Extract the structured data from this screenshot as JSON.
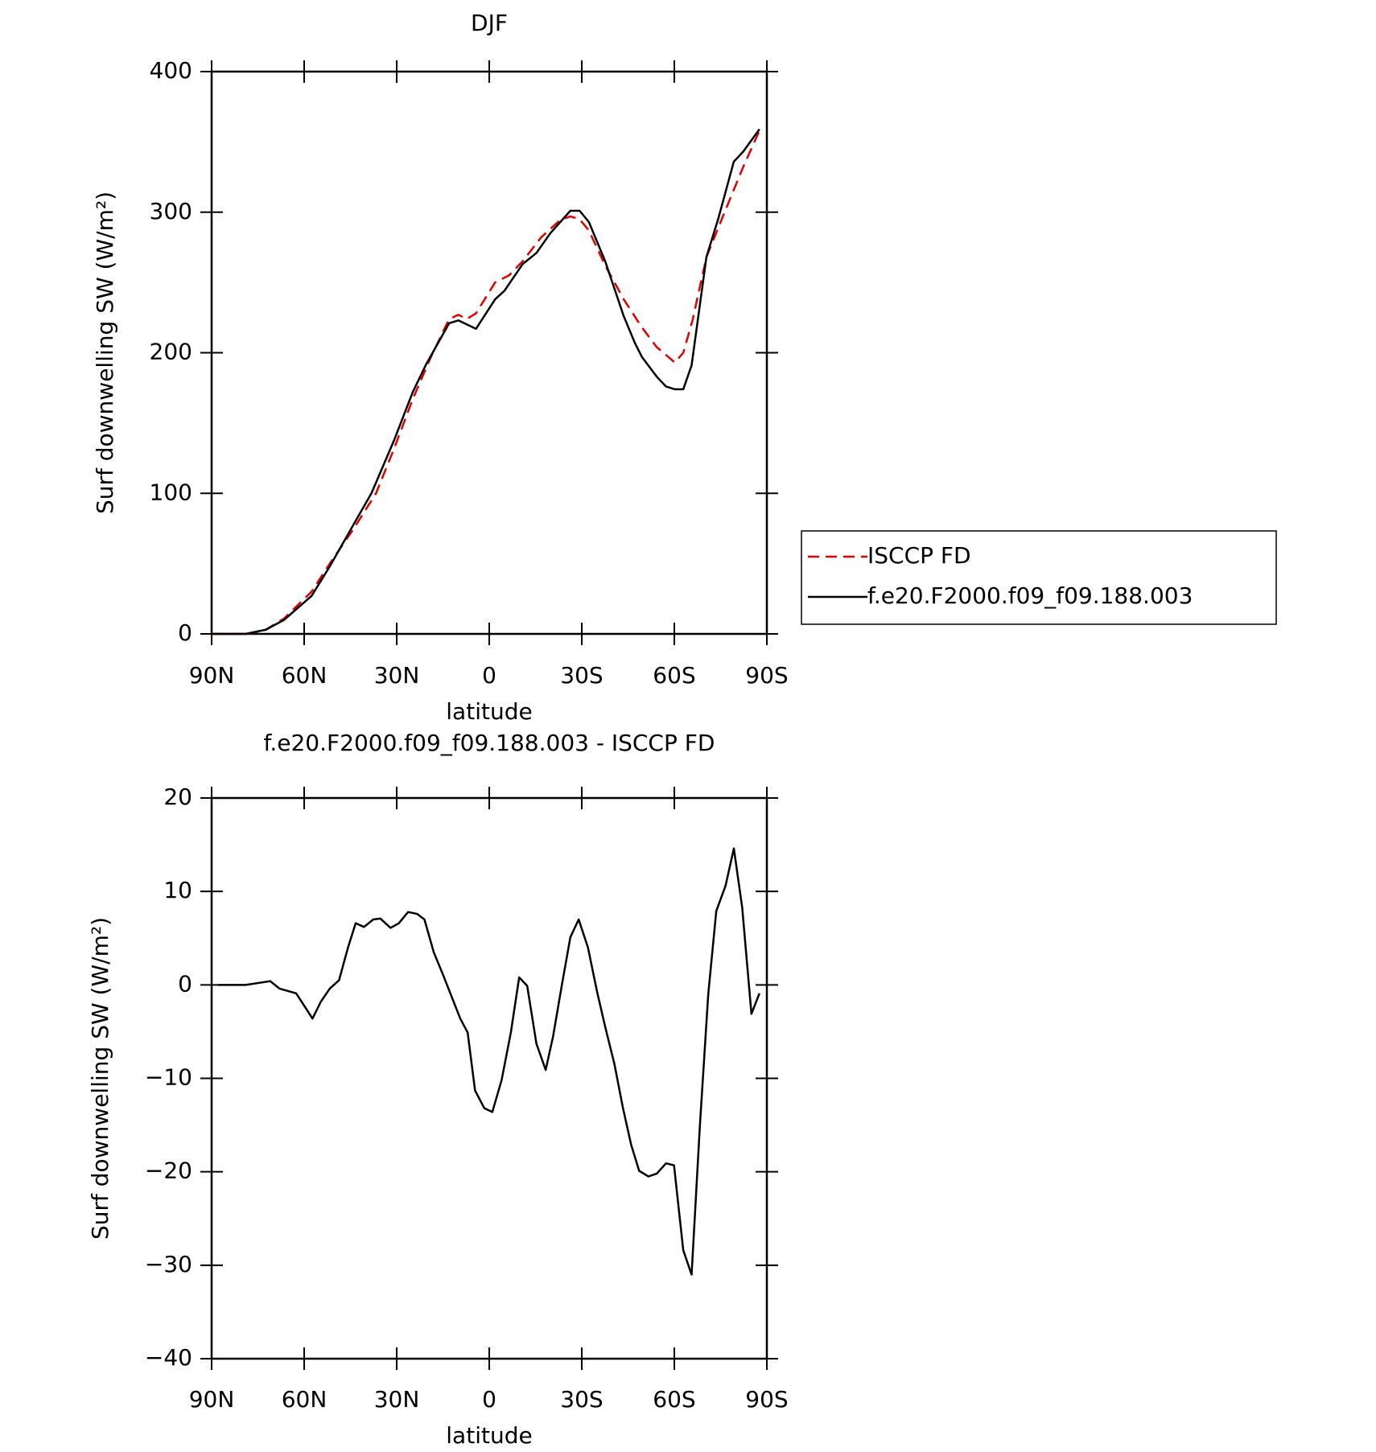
{
  "chart_data": [
    {
      "type": "line",
      "title": "DJF",
      "xlabel": "latitude",
      "ylabel": "Surf downwelling SW (W/m²)",
      "xlim": [
        90,
        -90
      ],
      "xticks": [
        {
          "value": 90,
          "label": "90N"
        },
        {
          "value": 60,
          "label": "60N"
        },
        {
          "value": 30,
          "label": "30N"
        },
        0,
        {
          "value": -30,
          "label": "30S"
        },
        {
          "value": -60,
          "label": "60S"
        },
        {
          "value": -90,
          "label": "90S"
        }
      ],
      "ylim": [
        0,
        400
      ],
      "yticks": [
        0,
        100,
        200,
        300,
        400
      ],
      "legend": "right",
      "series": [
        {
          "name": "ISCCP FD",
          "color": "#e00000",
          "dash": true,
          "x": [
            90,
            78.4,
            72.4,
            66.5,
            57.6,
            51.7,
            44.2,
            36.7,
            30.8,
            24.8,
            18.9,
            13,
            10,
            7.3,
            4.3,
            -1.9,
            -6.4,
            -10.8,
            -16.8,
            -22.8,
            -26.3,
            -29.3,
            -32.3,
            -37.6,
            -43.6,
            -49.5,
            -54.3,
            -60.2,
            -62.9,
            -65.9,
            -70.4,
            -76.3,
            -82.3,
            -87.6
          ],
          "values": [
            0,
            0,
            3,
            11,
            30,
            50,
            74,
            100,
            132,
            167,
            197,
            224,
            227,
            224,
            228,
            250,
            255,
            265,
            282,
            294,
            297,
            295,
            287,
            262,
            238,
            218,
            204,
            193,
            200,
            223,
            268,
            300,
            332,
            358
          ]
        },
        {
          "name": "f.e20.F2000.f09_f09.188.003",
          "color": "#000000",
          "dash": false,
          "x": [
            90,
            79,
            72.4,
            66.5,
            57.6,
            51.7,
            44.2,
            38.2,
            30.8,
            24.8,
            20.4,
            13,
            10,
            4.3,
            -1.9,
            -4.9,
            -10.8,
            -15.3,
            -19.8,
            -26.3,
            -29.3,
            -32.3,
            -37.6,
            -43.6,
            -47.2,
            -49.5,
            -54.3,
            -57.3,
            -60.2,
            -62.9,
            -65.6,
            -70.4,
            -74.2,
            -79.3,
            -82.3,
            -87.6
          ],
          "values": [
            0,
            0,
            3,
            10,
            27,
            48,
            77,
            100,
            138,
            172,
            192,
            221,
            223,
            217,
            238,
            244,
            263,
            271,
            285,
            301,
            301,
            293,
            265,
            226,
            207,
            197,
            183,
            176,
            174,
            174,
            191,
            268,
            295,
            336,
            343,
            359
          ]
        }
      ]
    },
    {
      "type": "line",
      "title": "f.e20.F2000.f09_f09.188.003 - ISCCP FD",
      "xlabel": "latitude",
      "ylabel": "Surf downwelling SW (W/m²)",
      "xlim": [
        90,
        -90
      ],
      "xticks": [
        {
          "value": 90,
          "label": "90N"
        },
        {
          "value": 60,
          "label": "60N"
        },
        {
          "value": 30,
          "label": "30N"
        },
        0,
        {
          "value": -30,
          "label": "30S"
        },
        {
          "value": -60,
          "label": "60S"
        },
        {
          "value": -90,
          "label": "90S"
        }
      ],
      "ylim": [
        -40,
        20
      ],
      "yticks": [
        {
          "value": -40,
          "label": "−40"
        },
        {
          "value": -30,
          "label": "−30"
        },
        {
          "value": -20,
          "label": "−20"
        },
        {
          "value": -10,
          "label": "−10"
        },
        0,
        10,
        20
      ],
      "series": [
        {
          "color": "#000000",
          "dash": false,
          "x": [
            87.9,
            79,
            71,
            68,
            62.6,
            57.3,
            54.6,
            51.7,
            48.7,
            45.7,
            43.3,
            40.6,
            37.6,
            35.3,
            32,
            29.3,
            26.3,
            23.4,
            21,
            18,
            15,
            9.4,
            7,
            4.6,
            1.6,
            -1,
            -4,
            -7,
            -9.7,
            -12.3,
            -15.3,
            -18.3,
            -20.7,
            -23.6,
            -26.3,
            -29,
            -32,
            -35,
            -37.6,
            -40.6,
            -43.3,
            -46,
            -48.6,
            -51.6,
            -54.3,
            -57.3,
            -59.9,
            -62.9,
            -65.6,
            -68.3,
            -71,
            -73.6,
            -76.6,
            -79.3,
            -82,
            -85,
            -87.6
          ],
          "values": [
            0,
            0,
            0.4,
            -0.4,
            -0.9,
            -3.6,
            -1.8,
            -0.4,
            0.5,
            4.1,
            6.6,
            6.2,
            7,
            7.1,
            6.1,
            6.6,
            7.8,
            7.6,
            7,
            3.5,
            1.1,
            -3.6,
            -5.1,
            -11.3,
            -13.2,
            -13.6,
            -10.2,
            -5.1,
            0.8,
            -0.1,
            -6.3,
            -9.1,
            -5.5,
            0.1,
            5.1,
            7,
            4,
            -0.8,
            -4.5,
            -8.5,
            -13.1,
            -17.1,
            -19.9,
            -20.5,
            -20.2,
            -19.1,
            -19.3,
            -28.4,
            -31,
            -15,
            -1,
            7.9,
            10.6,
            14.6,
            8.3,
            -3.1,
            -0.9
          ]
        }
      ]
    }
  ]
}
